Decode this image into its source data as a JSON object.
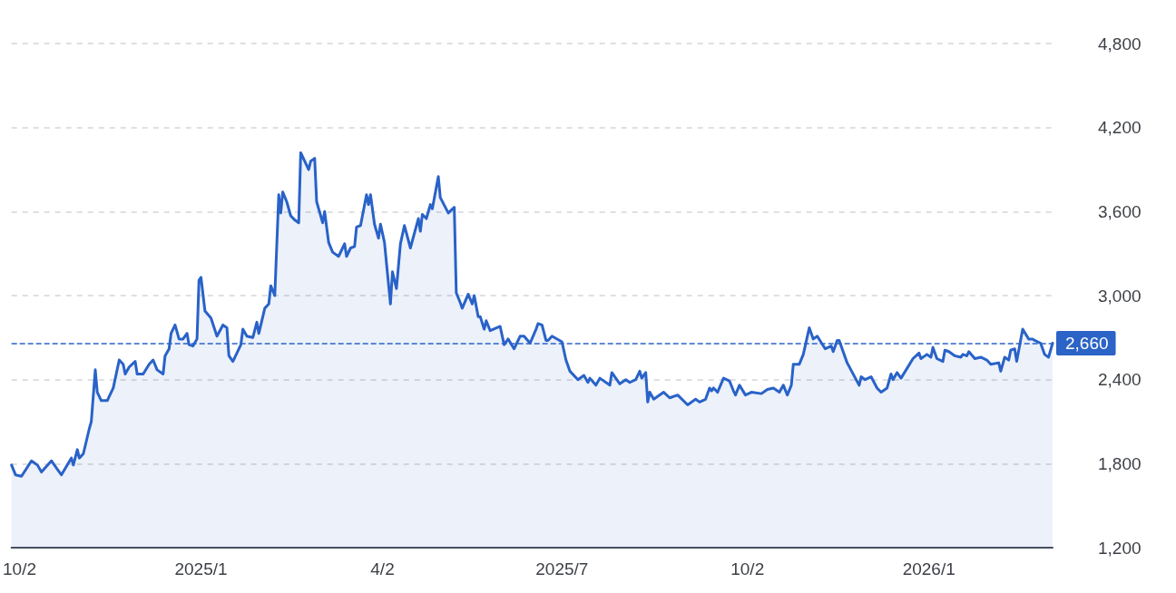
{
  "chart_data": {
    "type": "area",
    "marker": "none",
    "line_style": "solid",
    "grid": "y",
    "xlim": [
      "2024-09-28",
      "2026-03-04"
    ],
    "xticks": [
      {
        "value": "2024-10-02",
        "label": "10/2"
      },
      {
        "value": "2025-01-01",
        "label": "2025/1"
      },
      {
        "value": "2025-04-02",
        "label": "4/2"
      },
      {
        "value": "2025-07-01",
        "label": "2025/7"
      },
      {
        "value": "2025-10-02",
        "label": "10/2"
      },
      {
        "value": "2026-01-01",
        "label": "2026/1"
      }
    ],
    "ylim": [
      1200,
      4800
    ],
    "yticks": [
      {
        "value": 1200,
        "label": "1,200"
      },
      {
        "value": 1800,
        "label": "1,800"
      },
      {
        "value": 2400,
        "label": "2,400"
      },
      {
        "value": 3000,
        "label": "3,000"
      },
      {
        "value": 3600,
        "label": "3,600"
      },
      {
        "value": 4200,
        "label": "4,200"
      },
      {
        "value": 4800,
        "label": "4,800"
      }
    ],
    "ref_lines": [
      {
        "axis": "y",
        "value": 2660,
        "label": "2,660",
        "color": "#2b63c6",
        "line_style": "dashed"
      }
    ],
    "series": [
      {
        "color": "#2962c8",
        "x": [
          "2024-09-28",
          "2024-09-30",
          "2024-10-03",
          "2024-10-08",
          "2024-10-11",
          "2024-10-13",
          "2024-10-18",
          "2024-10-21",
          "2024-10-23",
          "2024-10-28",
          "2024-10-29",
          "2024-10-31",
          "2024-11-01",
          "2024-11-03",
          "2024-11-06",
          "2024-11-07",
          "2024-11-09",
          "2024-11-10",
          "2024-11-12",
          "2024-11-15",
          "2024-11-18",
          "2024-11-21",
          "2024-11-23",
          "2024-11-24",
          "2024-11-26",
          "2024-11-29",
          "2024-11-30",
          "2024-12-03",
          "2024-12-06",
          "2024-12-08",
          "2024-12-10",
          "2024-12-13",
          "2024-12-14",
          "2024-12-16",
          "2024-12-17",
          "2024-12-19",
          "2024-12-21",
          "2024-12-23",
          "2024-12-25",
          "2024-12-26",
          "2024-12-28",
          "2024-12-30",
          "2024-12-31",
          "2025-01-01",
          "2025-01-03",
          "2025-01-06",
          "2025-01-09",
          "2025-01-12",
          "2025-01-14",
          "2025-01-15",
          "2025-01-17",
          "2025-01-21",
          "2025-01-22",
          "2025-01-24",
          "2025-01-27",
          "2025-01-29",
          "2025-01-30",
          "2025-02-02",
          "2025-02-04",
          "2025-02-05",
          "2025-02-07",
          "2025-02-09",
          "2025-02-10",
          "2025-02-11",
          "2025-02-13",
          "2025-02-15",
          "2025-02-17",
          "2025-02-19",
          "2025-02-20",
          "2025-02-24",
          "2025-02-25",
          "2025-02-27",
          "2025-02-28",
          "2025-03-03",
          "2025-03-04",
          "2025-03-06",
          "2025-03-08",
          "2025-03-11",
          "2025-03-14",
          "2025-03-15",
          "2025-03-17",
          "2025-03-19",
          "2025-03-20",
          "2025-03-22",
          "2025-03-25",
          "2025-03-26",
          "2025-03-27",
          "2025-03-29",
          "2025-03-31",
          "2025-04-01",
          "2025-04-03",
          "2025-04-06",
          "2025-04-07",
          "2025-04-09",
          "2025-04-11",
          "2025-04-13",
          "2025-04-16",
          "2025-04-20",
          "2025-04-21",
          "2025-04-22",
          "2025-04-24",
          "2025-04-26",
          "2025-04-27",
          "2025-04-30",
          "2025-05-01",
          "2025-05-05",
          "2025-05-08",
          "2025-05-09",
          "2025-05-11",
          "2025-05-12",
          "2025-05-15",
          "2025-05-17",
          "2025-05-18",
          "2025-05-20",
          "2025-05-21",
          "2025-05-23",
          "2025-05-24",
          "2025-05-26",
          "2025-05-31",
          "2025-06-02",
          "2025-06-04",
          "2025-06-07",
          "2025-06-10",
          "2025-06-12",
          "2025-06-15",
          "2025-06-18",
          "2025-06-19",
          "2025-06-21",
          "2025-06-23",
          "2025-06-24",
          "2025-06-26",
          "2025-07-01",
          "2025-07-03",
          "2025-07-05",
          "2025-07-09",
          "2025-07-12",
          "2025-07-14",
          "2025-07-15",
          "2025-07-18",
          "2025-07-20",
          "2025-07-25",
          "2025-07-26",
          "2025-07-30",
          "2025-08-02",
          "2025-08-04",
          "2025-08-07",
          "2025-08-09",
          "2025-08-10",
          "2025-08-12",
          "2025-08-13",
          "2025-08-14",
          "2025-08-16",
          "2025-08-21",
          "2025-08-24",
          "2025-08-28",
          "2025-09-02",
          "2025-09-06",
          "2025-09-08",
          "2025-09-11",
          "2025-09-13",
          "2025-09-14",
          "2025-09-15",
          "2025-09-17",
          "2025-09-20",
          "2025-09-23",
          "2025-09-25",
          "2025-09-26",
          "2025-09-28",
          "2025-10-01",
          "2025-10-04",
          "2025-10-09",
          "2025-10-12",
          "2025-10-15",
          "2025-10-18",
          "2025-10-20",
          "2025-10-22",
          "2025-10-24",
          "2025-10-25",
          "2025-10-28",
          "2025-10-30",
          "2025-11-02",
          "2025-11-04",
          "2025-11-06",
          "2025-11-10",
          "2025-11-13",
          "2025-11-14",
          "2025-11-16",
          "2025-11-17",
          "2025-11-21",
          "2025-11-27",
          "2025-11-28",
          "2025-11-30",
          "2025-12-03",
          "2025-12-06",
          "2025-12-08",
          "2025-12-11",
          "2025-12-13",
          "2025-12-14",
          "2025-12-16",
          "2025-12-18",
          "2025-12-24",
          "2025-12-27",
          "2025-12-28",
          "2025-12-31",
          "2026-01-02",
          "2026-01-03",
          "2026-01-05",
          "2026-01-08",
          "2026-01-09",
          "2026-01-11",
          "2026-01-14",
          "2026-01-17",
          "2026-01-18",
          "2026-01-20",
          "2026-01-21",
          "2026-01-24",
          "2026-01-27",
          "2026-01-30",
          "2026-02-01",
          "2026-02-05",
          "2026-02-06",
          "2026-02-08",
          "2026-02-10",
          "2026-02-11",
          "2026-02-13",
          "2026-02-14",
          "2026-02-17",
          "2026-02-20",
          "2026-02-22",
          "2026-02-23",
          "2026-02-26",
          "2026-02-28",
          "2026-03-02",
          "2026-03-04"
        ],
        "values": [
          1790,
          1720,
          1710,
          1820,
          1790,
          1740,
          1820,
          1760,
          1720,
          1840,
          1790,
          1900,
          1840,
          1870,
          2050,
          2100,
          2470,
          2310,
          2250,
          2250,
          2340,
          2540,
          2510,
          2440,
          2490,
          2530,
          2440,
          2440,
          2510,
          2540,
          2470,
          2440,
          2570,
          2620,
          2730,
          2790,
          2690,
          2690,
          2730,
          2650,
          2640,
          2690,
          3110,
          3130,
          2890,
          2840,
          2710,
          2790,
          2770,
          2570,
          2530,
          2650,
          2760,
          2710,
          2700,
          2810,
          2730,
          2910,
          2940,
          3070,
          3000,
          3720,
          3590,
          3740,
          3670,
          3570,
          3540,
          3520,
          4020,
          3900,
          3960,
          3980,
          3670,
          3520,
          3600,
          3380,
          3310,
          3280,
          3370,
          3280,
          3340,
          3350,
          3490,
          3500,
          3720,
          3650,
          3720,
          3510,
          3410,
          3510,
          3380,
          2940,
          3170,
          3050,
          3370,
          3500,
          3340,
          3550,
          3460,
          3580,
          3550,
          3650,
          3620,
          3850,
          3700,
          3590,
          3630,
          3020,
          2950,
          2910,
          3010,
          2940,
          3000,
          2850,
          2850,
          2760,
          2820,
          2750,
          2780,
          2650,
          2690,
          2620,
          2710,
          2710,
          2660,
          2760,
          2800,
          2790,
          2680,
          2680,
          2710,
          2670,
          2540,
          2460,
          2400,
          2430,
          2380,
          2410,
          2360,
          2410,
          2360,
          2450,
          2370,
          2400,
          2380,
          2400,
          2460,
          2410,
          2450,
          2240,
          2310,
          2260,
          2310,
          2270,
          2290,
          2220,
          2260,
          2240,
          2260,
          2340,
          2320,
          2340,
          2310,
          2410,
          2390,
          2320,
          2290,
          2360,
          2290,
          2310,
          2300,
          2330,
          2340,
          2310,
          2360,
          2290,
          2360,
          2510,
          2510,
          2580,
          2770,
          2690,
          2710,
          2620,
          2640,
          2600,
          2680,
          2680,
          2520,
          2360,
          2420,
          2400,
          2420,
          2340,
          2310,
          2340,
          2440,
          2400,
          2450,
          2410,
          2550,
          2590,
          2550,
          2580,
          2560,
          2630,
          2550,
          2530,
          2610,
          2600,
          2570,
          2560,
          2580,
          2570,
          2600,
          2550,
          2560,
          2540,
          2510,
          2520,
          2460,
          2560,
          2540,
          2610,
          2620,
          2530,
          2760,
          2690,
          2690,
          2680,
          2660,
          2580,
          2560,
          2660
        ]
      }
    ]
  }
}
